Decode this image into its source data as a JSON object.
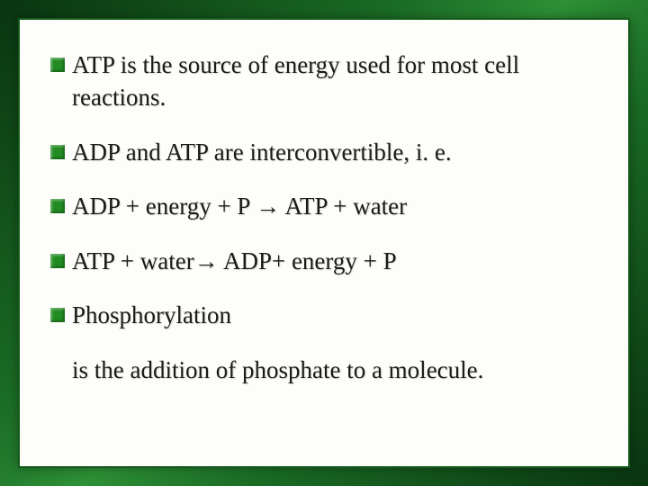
{
  "slide": {
    "background_gradient": [
      "#0a3510",
      "#1a6b25",
      "#2d9035",
      "#1a6b25",
      "#0a3510"
    ],
    "card_background": "#fdfdfa",
    "card_border_color": "#145a1a",
    "text_color": "#1a1a18",
    "bullet_color": "#228b22",
    "font_family": "Times New Roman",
    "body_fontsize": 27,
    "bullets": [
      {
        "text": "ATP is the source of energy used for most cell reactions."
      },
      {
        "text": "ADP and ATP are interconvertible, i. e."
      },
      {
        "text": "ADP + energy + P → ATP + water"
      },
      {
        "text": "ATP + water→ ADP+ energy + P"
      },
      {
        "text": "Phosphorylation"
      }
    ],
    "continuation_text": "is the addition of phosphate to a molecule."
  }
}
